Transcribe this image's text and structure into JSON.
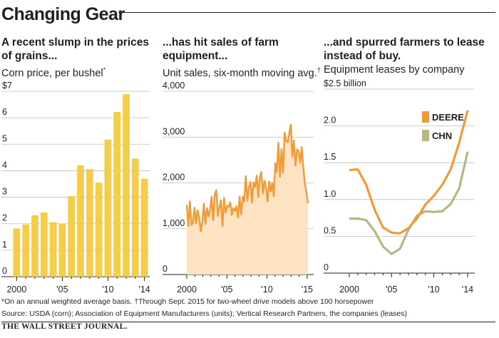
{
  "header": {
    "title": "Changing Gear"
  },
  "panels": [
    {
      "title_line1": "A recent slump in the prices",
      "title_line2": "of grains...",
      "subtitle": "Corn price, per bushel",
      "subtitle_mark": "*"
    },
    {
      "title_line1": "...has hit sales of farm",
      "title_line2": "equipment...",
      "subtitle": "Unit sales, six-month moving avg.",
      "subtitle_mark": "†"
    },
    {
      "title_line1": "...and spurred farmers to lease",
      "title_line2": "instead of buy.",
      "subtitle": "Equipment leases by company",
      "subtitle_mark": ""
    }
  ],
  "chart_data": [
    {
      "type": "bar",
      "x": [
        2000,
        2001,
        2002,
        2003,
        2004,
        2005,
        2006,
        2007,
        2008,
        2009,
        2010,
        2011,
        2012,
        2013,
        2014
      ],
      "values": [
        1.82,
        1.97,
        2.32,
        2.42,
        2.06,
        2.0,
        3.04,
        4.2,
        4.06,
        3.55,
        5.18,
        6.22,
        6.89,
        4.46,
        3.7
      ],
      "ylim": [
        0,
        7
      ],
      "yticks": [
        "0",
        "1",
        "2",
        "3",
        "4",
        "5",
        "6",
        "$7"
      ],
      "xticks": [
        "2000",
        "'05",
        "'10",
        "'14"
      ],
      "color": "#f5cd4a",
      "grid": true
    },
    {
      "type": "area",
      "x_range": [
        2000.5,
        2015.6
      ],
      "values": [
        1520,
        1060,
        1600,
        1080,
        1130,
        1460,
        1120,
        1400,
        1250,
        940,
        1150,
        1550,
        1100,
        1450,
        1270,
        1420,
        1700,
        1180,
        1750,
        1840,
        1280,
        1470,
        1620,
        1060,
        1670,
        1350,
        1500,
        1480,
        1580,
        1300,
        1450,
        1390,
        1490,
        1240,
        1700,
        1310,
        1700,
        1590,
        2150,
        1610,
        1910,
        2020,
        1570,
        2010,
        1910,
        2160,
        1690,
        2120,
        2240,
        1770,
        2050,
        1890,
        1600,
        2030,
        1810,
        2000,
        1710,
        2430,
        2240,
        2880,
        2130,
        2740,
        2220,
        3100,
        2910,
        2890,
        3080,
        3270,
        2570,
        2930,
        2380,
        2730,
        2700,
        2440,
        2780,
        2330,
        2000,
        1800,
        1560
      ],
      "ylim": [
        0,
        4000
      ],
      "yticks": [
        "0",
        "1,000",
        "2,000",
        "3,000",
        "4,000"
      ],
      "xticks": [
        "2000",
        "'05",
        "'10",
        "'15"
      ],
      "line_color": "#f39a35",
      "fill_color": "#fde3c2",
      "grid": true
    },
    {
      "type": "line",
      "x": [
        2000,
        2001,
        2002,
        2003,
        2004,
        2005,
        2006,
        2007,
        2008,
        2009,
        2010,
        2011,
        2012,
        2013,
        2014
      ],
      "ylim": [
        0,
        2.5
      ],
      "yticks": [
        "0",
        "0.5",
        "1.0",
        "1.5",
        "2.0",
        "$2.5 billion"
      ],
      "xticks": [
        "2000",
        "'05",
        "'10",
        "'14"
      ],
      "grid": true,
      "legend": "top-right",
      "series": [
        {
          "name": "DEERE",
          "color": "#f39a35",
          "values": [
            1.4,
            1.41,
            1.2,
            0.86,
            0.62,
            0.55,
            0.54,
            0.61,
            0.74,
            0.93,
            1.05,
            1.2,
            1.41,
            1.77,
            2.21
          ]
        },
        {
          "name": "CHN",
          "color": "#b9b585",
          "values": [
            0.74,
            0.74,
            0.72,
            0.57,
            0.36,
            0.26,
            0.33,
            0.59,
            0.78,
            0.84,
            0.83,
            0.84,
            0.94,
            1.15,
            1.65
          ]
        }
      ]
    }
  ],
  "footnote": "*On an annual weighted average basis. †Through Sept. 2015 for two-wheel drive models above 100 horsepower",
  "source": "Source: USDA (corn); Association of Equipment Manufacturers (units); Vertical Research Partners, the companies (leases)",
  "publisher": "THE WALL STREET JOURNAL."
}
